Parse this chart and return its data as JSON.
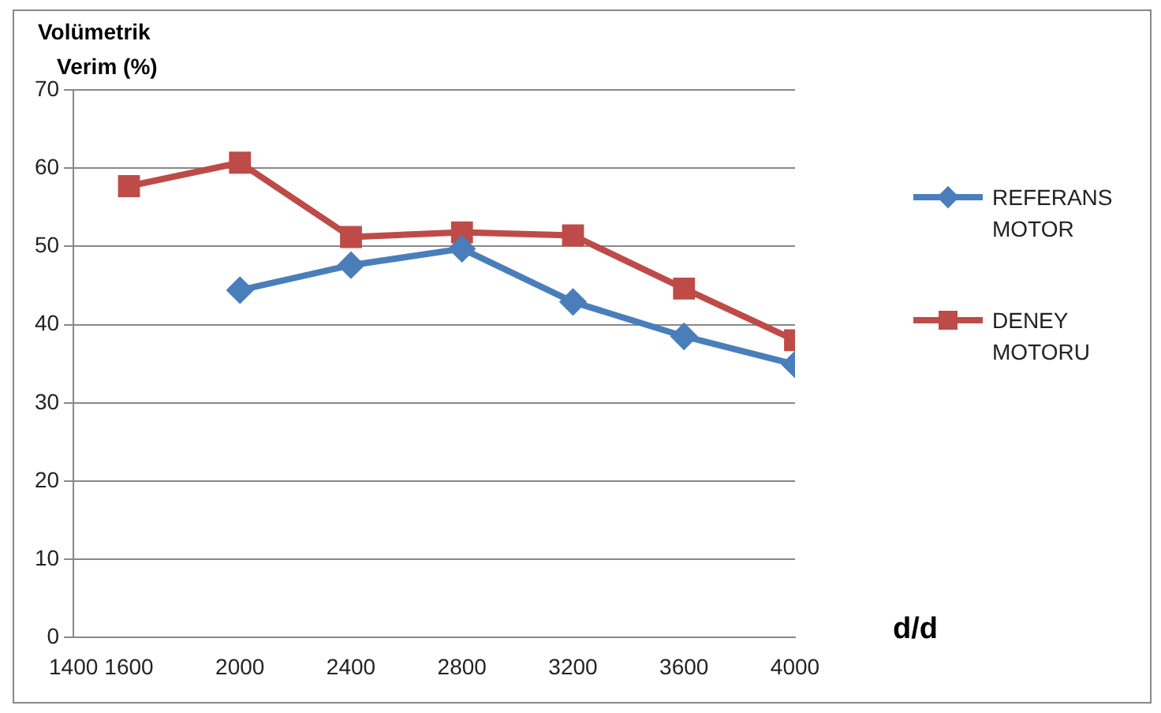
{
  "chart_data": {
    "type": "line",
    "ylabel": "Volümetrik Verim (%)",
    "xlabel": "d/d",
    "x": [
      1600,
      2000,
      2400,
      2800,
      3200,
      3600,
      4000
    ],
    "series": [
      {
        "name": "REFERANS MOTOR",
        "color": "#4a7ebb",
        "marker": "diamond",
        "values": [
          null,
          44.4,
          47.6,
          49.7,
          42.9,
          38.5,
          34.9
        ]
      },
      {
        "name": "DENEY MOTORU",
        "color": "#be4b48",
        "marker": "square",
        "values": [
          57.7,
          60.7,
          51.2,
          51.8,
          51.4,
          44.6,
          38
        ]
      }
    ],
    "xlim": [
      1400,
      4000
    ],
    "xticks": [
      1400,
      1600,
      2000,
      2400,
      2800,
      3200,
      3600,
      4000
    ],
    "ylim": [
      0,
      70
    ],
    "yticks": [
      0,
      10,
      20,
      30,
      40,
      50,
      60,
      70
    ],
    "grid": "y",
    "legend": "right"
  }
}
